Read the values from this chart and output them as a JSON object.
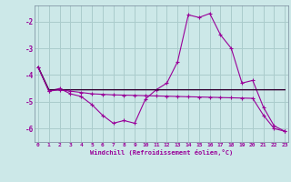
{
  "xlabel": "Windchill (Refroidissement éolien,°C)",
  "bg_color": "#cce8e8",
  "grid_color": "#aacccc",
  "line_color": "#990099",
  "dark_line_color": "#330033",
  "x": [
    0,
    1,
    2,
    3,
    4,
    5,
    6,
    7,
    8,
    9,
    10,
    11,
    12,
    13,
    14,
    15,
    16,
    17,
    18,
    19,
    20,
    21,
    22,
    23
  ],
  "line1": [
    -3.7,
    -4.6,
    -4.5,
    -4.7,
    -4.8,
    -5.1,
    -5.5,
    -5.8,
    -5.7,
    -5.8,
    -4.9,
    -4.55,
    -4.3,
    -3.5,
    -1.75,
    -1.85,
    -1.7,
    -2.5,
    -3.0,
    -4.3,
    -4.2,
    -5.2,
    -5.9,
    -6.1
  ],
  "line2": [
    -3.7,
    -4.55,
    -4.55,
    -4.55,
    -4.55,
    -4.55,
    -4.55,
    -4.55,
    -4.55,
    -4.55,
    -4.55,
    -4.55,
    -4.55,
    -4.55,
    -4.55,
    -4.55,
    -4.55,
    -4.55,
    -4.55,
    -4.55,
    -4.55,
    -4.55,
    -4.55,
    -4.55
  ],
  "line3": [
    -3.7,
    -4.6,
    -4.55,
    -4.6,
    -4.65,
    -4.7,
    -4.72,
    -4.74,
    -4.75,
    -4.76,
    -4.77,
    -4.78,
    -4.79,
    -4.8,
    -4.81,
    -4.82,
    -4.83,
    -4.84,
    -4.85,
    -4.86,
    -4.87,
    -5.5,
    -6.0,
    -6.1
  ],
  "ylim": [
    -6.5,
    -1.4
  ],
  "yticks": [
    -6,
    -5,
    -4,
    -3,
    -2
  ],
  "xlim": [
    -0.3,
    23.3
  ]
}
